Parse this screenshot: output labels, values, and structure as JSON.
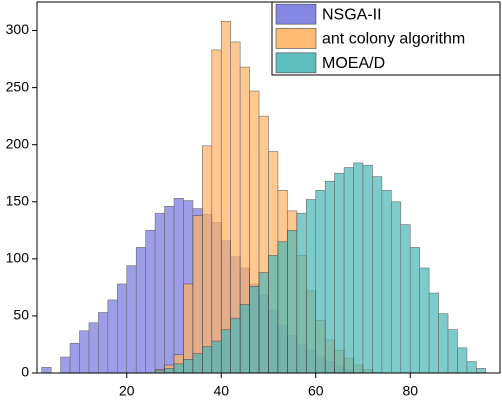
{
  "chart_data": {
    "type": "histogram",
    "bins": [
      2,
      4,
      6,
      8,
      10,
      12,
      14,
      16,
      18,
      20,
      22,
      24,
      26,
      28,
      30,
      32,
      34,
      36,
      38,
      40,
      42,
      44,
      46,
      48,
      50,
      52,
      54,
      56,
      58,
      60,
      62,
      64,
      66,
      68,
      70,
      72,
      74,
      76,
      78,
      80,
      82,
      84,
      86,
      88,
      90,
      92,
      94,
      96
    ],
    "series": [
      {
        "name": "NSGA-II",
        "color": "#7a7ae0",
        "values": [
          5,
          0,
          14,
          26,
          37,
          44,
          53,
          64,
          78,
          94,
          110,
          125,
          140,
          146,
          153,
          151,
          144,
          139,
          132,
          116,
          102,
          92,
          78,
          68,
          55,
          42,
          33,
          25,
          20,
          14,
          10,
          6,
          3,
          0,
          0,
          0,
          0,
          0,
          0,
          0,
          0,
          0,
          0,
          0,
          0,
          0,
          0
        ]
      },
      {
        "name": "ant colony algorithm",
        "color": "#ffb366",
        "values": [
          0,
          0,
          0,
          0,
          0,
          0,
          0,
          0,
          0,
          0,
          0,
          0,
          3,
          7,
          16,
          78,
          138,
          199,
          283,
          308,
          290,
          268,
          247,
          225,
          194,
          160,
          142,
          103,
          72,
          46,
          29,
          20,
          13,
          7,
          3,
          0,
          0,
          0,
          0,
          0,
          0,
          0,
          0,
          0,
          0,
          0,
          0
        ]
      },
      {
        "name": "MOEA/D",
        "color": "#4db8b8",
        "values": [
          0,
          0,
          0,
          0,
          0,
          0,
          0,
          0,
          0,
          0,
          0,
          0,
          2,
          4,
          8,
          12,
          17,
          23,
          28,
          38,
          48,
          60,
          76,
          88,
          103,
          115,
          125,
          140,
          152,
          160,
          168,
          175,
          180,
          184,
          182,
          172,
          160,
          150,
          130,
          110,
          92,
          70,
          52,
          38,
          22,
          10,
          4
        ]
      }
    ],
    "xlim": [
      1,
      99
    ],
    "ylim": [
      0,
      325
    ],
    "xticks": [
      20,
      40,
      60,
      80
    ],
    "yticks": [
      0,
      50,
      100,
      150,
      200,
      250,
      300
    ],
    "legend": "upper right"
  }
}
